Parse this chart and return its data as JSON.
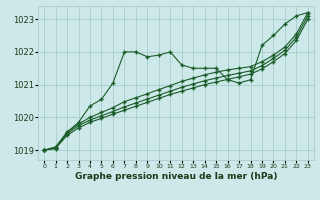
{
  "title": "Graphe pression niveau de la mer (hPa)",
  "bg_color": "#cce8e8",
  "grid_color": "#aacccc",
  "line_color": "#1a5c2a",
  "xlim": [
    -0.5,
    23.5
  ],
  "ylim": [
    1018.7,
    1023.4
  ],
  "yticks": [
    1019,
    1020,
    1021,
    1022,
    1023
  ],
  "xticks": [
    0,
    1,
    2,
    3,
    4,
    5,
    6,
    7,
    8,
    9,
    10,
    11,
    12,
    13,
    14,
    15,
    16,
    17,
    18,
    19,
    20,
    21,
    22,
    23
  ],
  "series": [
    {
      "x": [
        0,
        1,
        2,
        3,
        4,
        5,
        6,
        7,
        8,
        9,
        10,
        11,
        12,
        13,
        14,
        15,
        16,
        17,
        18,
        19,
        20,
        21,
        22,
        23
      ],
      "y": [
        1019.0,
        1019.05,
        1019.55,
        1019.85,
        1020.35,
        1020.55,
        1021.05,
        1022.0,
        1022.0,
        1021.85,
        1021.9,
        1022.0,
        1021.6,
        1021.5,
        1021.5,
        1021.5,
        1021.15,
        1021.05,
        1021.15,
        1022.2,
        1022.5,
        1022.85,
        1023.1,
        1023.2
      ]
    },
    {
      "x": [
        0,
        1,
        2,
        3,
        4,
        5,
        6,
        7,
        8,
        9,
        10,
        11,
        12,
        13,
        14,
        15,
        16,
        17,
        18,
        19,
        20,
        21,
        22,
        23
      ],
      "y": [
        1019.0,
        1019.1,
        1019.55,
        1019.8,
        1020.0,
        1020.15,
        1020.3,
        1020.48,
        1020.6,
        1020.72,
        1020.85,
        1020.97,
        1021.1,
        1021.2,
        1021.3,
        1021.38,
        1021.45,
        1021.5,
        1021.55,
        1021.7,
        1021.9,
        1022.15,
        1022.55,
        1023.2
      ]
    },
    {
      "x": [
        0,
        1,
        2,
        3,
        4,
        5,
        6,
        7,
        8,
        9,
        10,
        11,
        12,
        13,
        14,
        15,
        16,
        17,
        18,
        19,
        20,
        21,
        22,
        23
      ],
      "y": [
        1019.0,
        1019.08,
        1019.5,
        1019.75,
        1019.92,
        1020.05,
        1020.18,
        1020.32,
        1020.44,
        1020.56,
        1020.68,
        1020.8,
        1020.92,
        1021.02,
        1021.12,
        1021.2,
        1021.28,
        1021.35,
        1021.42,
        1021.58,
        1021.8,
        1022.05,
        1022.45,
        1023.1
      ]
    },
    {
      "x": [
        0,
        1,
        2,
        3,
        4,
        5,
        6,
        7,
        8,
        9,
        10,
        11,
        12,
        13,
        14,
        15,
        16,
        17,
        18,
        19,
        20,
        21,
        22,
        23
      ],
      "y": [
        1019.0,
        1019.06,
        1019.45,
        1019.68,
        1019.85,
        1019.97,
        1020.1,
        1020.22,
        1020.34,
        1020.46,
        1020.58,
        1020.7,
        1020.8,
        1020.9,
        1021.0,
        1021.08,
        1021.16,
        1021.24,
        1021.32,
        1021.48,
        1021.7,
        1021.95,
        1022.35,
        1023.0
      ]
    }
  ]
}
